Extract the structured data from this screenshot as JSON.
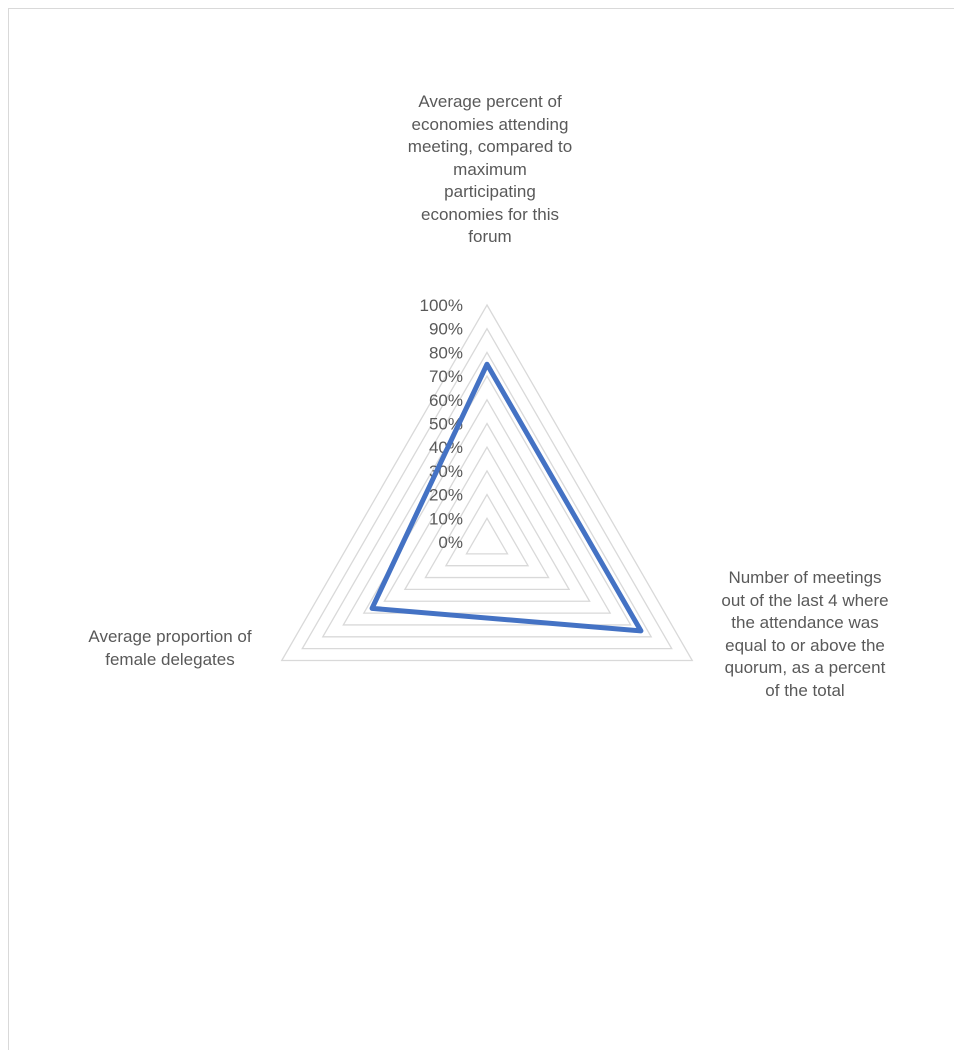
{
  "chart_data": {
    "type": "radar",
    "categories": [
      "Average percent of economies attending meeting, compared to maximum participating economies for this forum",
      "Number of meetings out of the last 4 where the attendance was equal to or above the quorum, as a percent of the total",
      "Average proportion of female delegates"
    ],
    "category_lines": [
      [
        "Average percent of",
        "economies attending",
        "meeting, compared to",
        "maximum",
        "participating",
        "economies for this",
        "forum"
      ],
      [
        "Number of meetings",
        "out of the last 4 where",
        "the attendance was",
        "equal to or above the",
        "quorum, as a percent",
        "of the total"
      ],
      [
        "Average proportion of",
        "female delegates"
      ]
    ],
    "series": [
      {
        "values": [
          0.75,
          0.75,
          0.56
        ]
      }
    ],
    "rlim": [
      0,
      1
    ],
    "ticks": [
      "0%",
      "10%",
      "20%",
      "30%",
      "40%",
      "50%",
      "60%",
      "70%",
      "80%",
      "90%",
      "100%"
    ],
    "grid": true,
    "legend": "none",
    "series_color": "#4472c4",
    "grid_color": "#d9d9d9",
    "text_color": "#595959"
  }
}
